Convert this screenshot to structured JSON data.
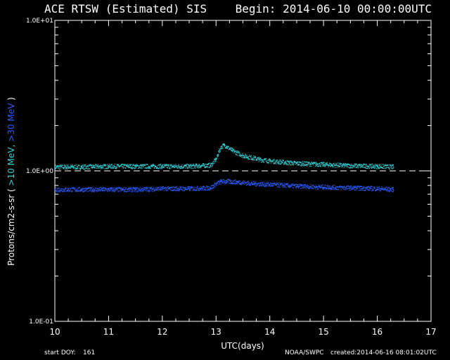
{
  "header": {
    "title": "ACE RTSW (Estimated) SIS",
    "begin": "Begin: 2014-06-10 00:00:00UTC"
  },
  "footer": {
    "start_doy_label": "start DOY:",
    "start_doy_value": "161",
    "org": "NOAA/SWPC",
    "created": "created:2014-06-16 08:01:02UTC"
  },
  "colors": {
    "background": "#000000",
    "axes": "#ffffff",
    "series_10mev": "#2fd4d9",
    "series_30mev": "#2a5cff",
    "reference_line": "#ffffff"
  },
  "chart_data": {
    "type": "scatter",
    "title": "ACE RTSW (Estimated) SIS",
    "xlabel": "UTC(days)",
    "ylabel": "Protons/cm2-s-sr",
    "ylabel_series": [
      ">10 MeV,",
      ">30 MeV"
    ],
    "xlim": [
      10,
      17
    ],
    "ylim": [
      0.1,
      10
    ],
    "yscale": "log",
    "xticks": [
      10,
      11,
      12,
      13,
      14,
      15,
      16,
      17
    ],
    "yticks": [
      {
        "value": 10,
        "label": "1.0E+01"
      },
      {
        "value": 1,
        "label": "1.0E+00"
      },
      {
        "value": 0.1,
        "label": "1.0E-01"
      }
    ],
    "reference_line": {
      "y": 1.0,
      "style": "dashed"
    },
    "grid": false,
    "series": [
      {
        "name": ">10 MeV",
        "color": "#2fd4d9",
        "x": [
          10.0,
          10.5,
          11.0,
          11.5,
          12.0,
          12.5,
          12.9,
          13.0,
          13.05,
          13.1,
          13.15,
          13.2,
          13.3,
          13.5,
          13.8,
          14.0,
          14.5,
          15.0,
          15.5,
          16.0,
          16.3
        ],
        "y": [
          1.06,
          1.06,
          1.07,
          1.07,
          1.07,
          1.07,
          1.09,
          1.2,
          1.35,
          1.45,
          1.48,
          1.44,
          1.36,
          1.26,
          1.19,
          1.16,
          1.12,
          1.1,
          1.08,
          1.07,
          1.06
        ]
      },
      {
        "name": ">30 MeV",
        "color": "#2a5cff",
        "x": [
          10.0,
          10.5,
          11.0,
          11.5,
          12.0,
          12.5,
          12.9,
          13.0,
          13.1,
          13.2,
          13.4,
          13.7,
          14.0,
          14.5,
          15.0,
          15.5,
          16.0,
          16.3
        ],
        "y": [
          0.75,
          0.75,
          0.75,
          0.75,
          0.76,
          0.76,
          0.77,
          0.82,
          0.85,
          0.85,
          0.84,
          0.82,
          0.81,
          0.79,
          0.78,
          0.77,
          0.76,
          0.75
        ]
      }
    ]
  }
}
